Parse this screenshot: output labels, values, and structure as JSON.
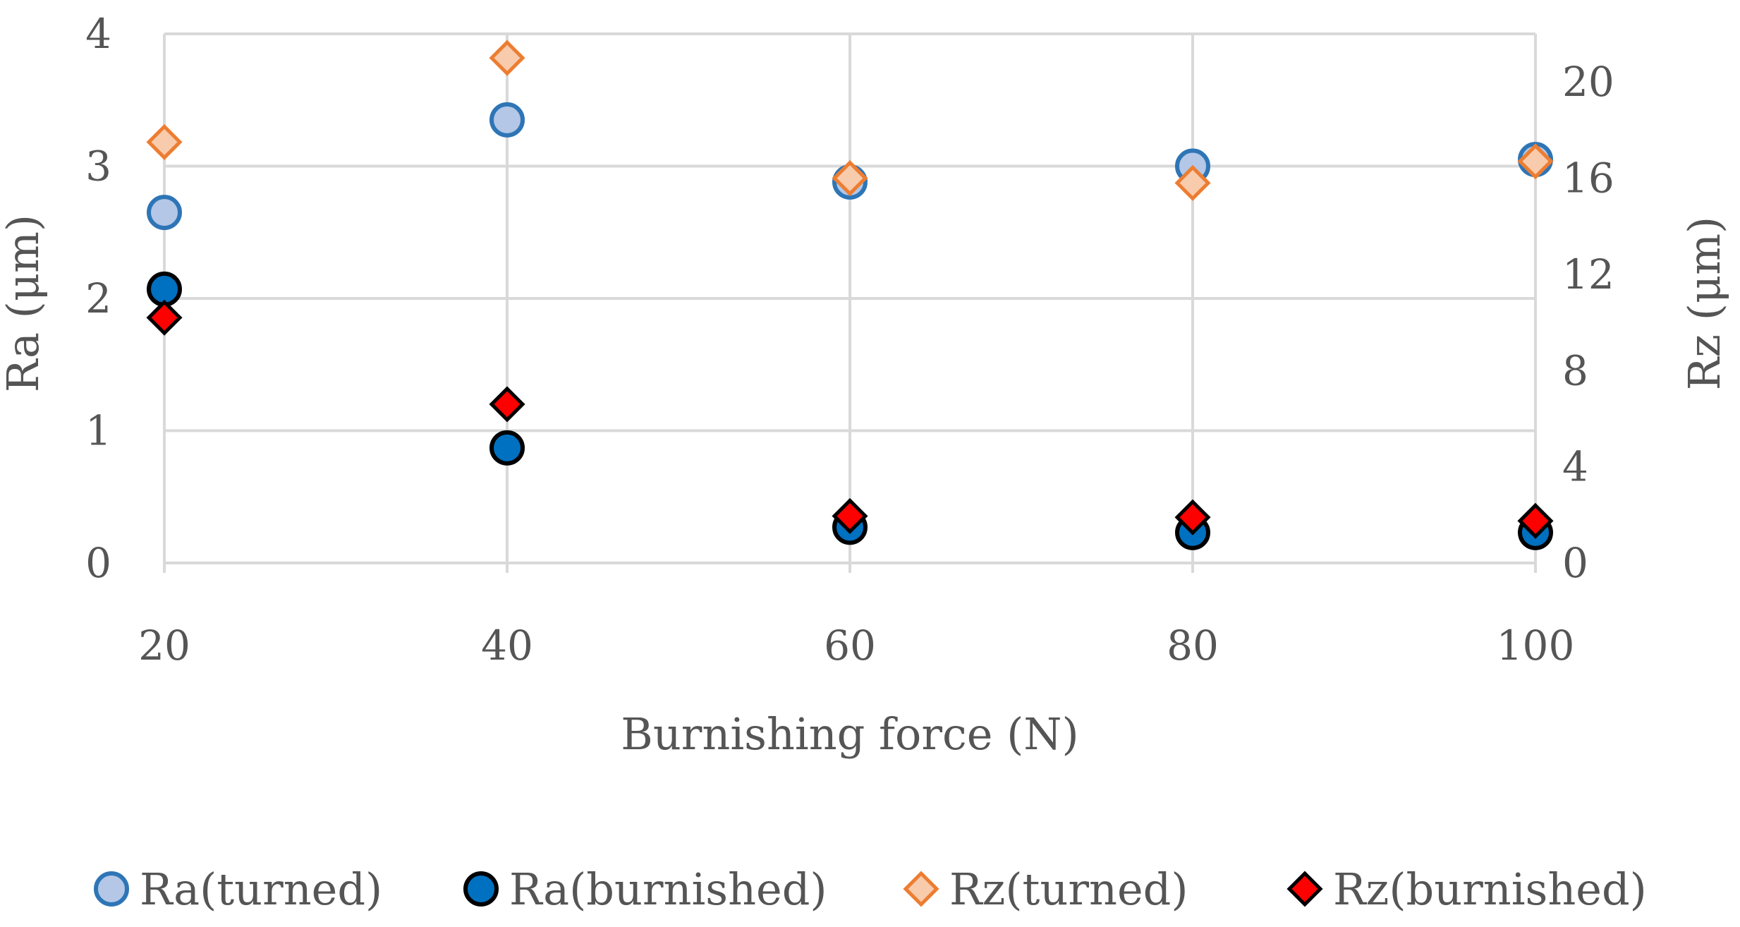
{
  "chart_data": {
    "type": "scatter",
    "xlabel": "Burnishing force (N)",
    "ylabel": "Ra (μm)",
    "y2label": "Rz (μm)",
    "xlim": [
      20,
      100
    ],
    "ylim": [
      0,
      4
    ],
    "y2lim": [
      0,
      22
    ],
    "x_ticks": [
      "20",
      "40",
      "60",
      "80",
      "100"
    ],
    "y_ticks": [
      "0",
      "1",
      "2",
      "3",
      "4"
    ],
    "y2_ticks": [
      "0",
      "4",
      "8",
      "12",
      "16",
      "20"
    ],
    "grid": true,
    "legend_position": "bottom",
    "series": [
      {
        "name": "Ra(turned)",
        "axis": "left",
        "marker": "circle",
        "fill": "#b4c7e7",
        "stroke": "#2e75b6",
        "x": [
          20,
          40,
          60,
          80,
          100
        ],
        "y": [
          2.65,
          3.35,
          2.88,
          3.0,
          3.05
        ]
      },
      {
        "name": "Ra(burnished)",
        "axis": "left",
        "marker": "circle",
        "fill": "#0070c0",
        "stroke": "#000000",
        "x": [
          20,
          40,
          60,
          80,
          100
        ],
        "y": [
          2.07,
          0.87,
          0.27,
          0.23,
          0.23
        ]
      },
      {
        "name": "Rz(turned)",
        "axis": "right",
        "marker": "diamond",
        "fill": "#f8cbad",
        "stroke": "#ed7d31",
        "x": [
          20,
          40,
          60,
          80,
          100
        ],
        "y": [
          17.5,
          21.0,
          16.0,
          15.8,
          16.7
        ]
      },
      {
        "name": "Rz(burnished)",
        "axis": "right",
        "marker": "diamond",
        "fill": "#ff0000",
        "stroke": "#000000",
        "x": [
          20,
          40,
          60,
          80,
          100
        ],
        "y": [
          10.2,
          6.6,
          1.95,
          1.9,
          1.75
        ]
      }
    ]
  }
}
